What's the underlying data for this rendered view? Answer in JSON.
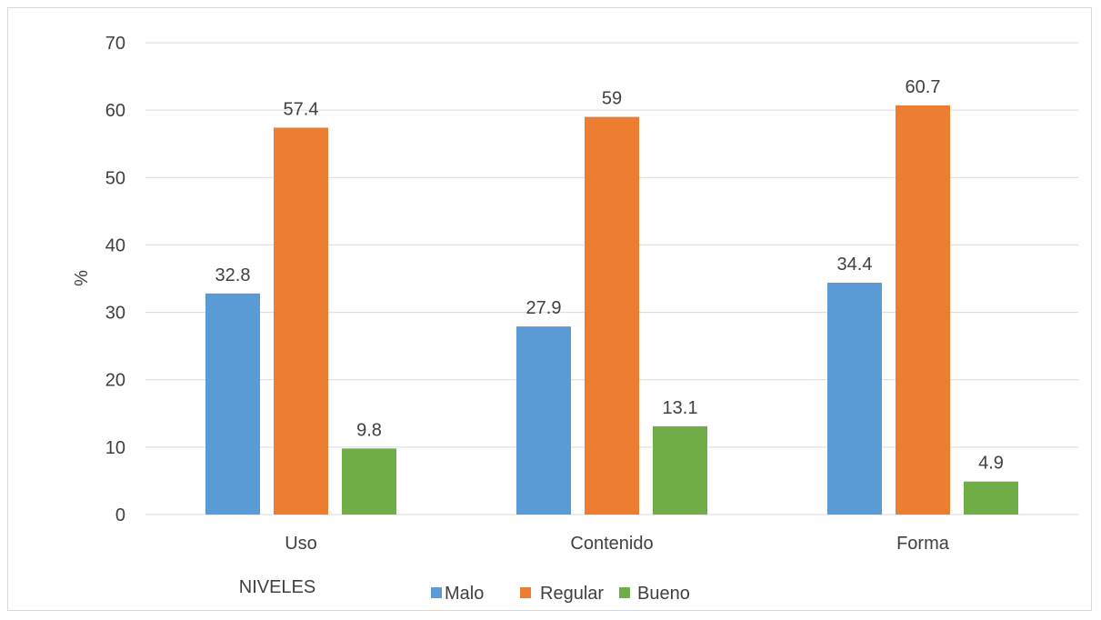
{
  "chart_data": {
    "type": "bar",
    "categories": [
      "Uso",
      "Contenido",
      "Forma"
    ],
    "series": [
      {
        "name": "Malo",
        "color": "#5b9bd5",
        "values": [
          32.8,
          27.9,
          34.4
        ],
        "labels": [
          "32.8",
          "27.9",
          "34.4"
        ]
      },
      {
        "name": "Regular",
        "color": "#ed7d31",
        "values": [
          57.4,
          59,
          60.7
        ],
        "labels": [
          "57.4",
          "59",
          "60.7"
        ]
      },
      {
        "name": "Bueno",
        "color": "#70ad47",
        "values": [
          9.8,
          13.1,
          4.9
        ],
        "labels": [
          "9.8",
          "13.1",
          "4.9"
        ]
      }
    ],
    "ylabel": "%",
    "xlabel": "NIVELES",
    "ylim": [
      0,
      70
    ],
    "yticks": [
      "0",
      "10",
      "20",
      "30",
      "40",
      "50",
      "60",
      "70"
    ],
    "grid": true,
    "legend_position": "bottom"
  }
}
